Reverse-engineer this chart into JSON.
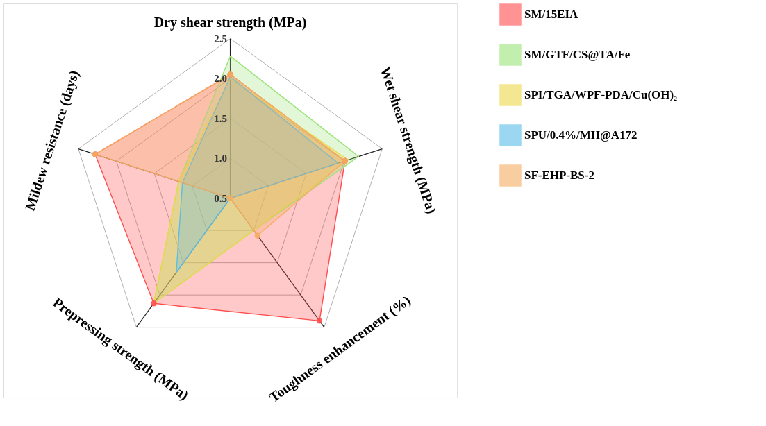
{
  "chart_data": {
    "type": "radar",
    "categories": [
      "Dry shear strength (MPa)",
      "Wet shear strength (MPa)",
      "Toughness enhancement (%)",
      "Prepressing strength (MPa)",
      "Mildew resistance (days)"
    ],
    "series": [
      {
        "name": "SM/15EIA",
        "color": "#ff4d4d",
        "marker": "circle",
        "values": [
          2.05,
          2.01,
          2.4,
          2.13,
          2.28
        ]
      },
      {
        "name": "SM/GTF/CS@TA/Fe",
        "color": "#9be37a",
        "marker": "none",
        "values": [
          2.28,
          2.19,
          1.0,
          2.13,
          1.18
        ]
      },
      {
        "name": "SPI/TGA/WPF-PDA/Cu(OH)₂",
        "color": "#ecd84a",
        "marker": "none",
        "values": [
          2.0,
          2.05,
          1.0,
          2.13,
          1.18
        ]
      },
      {
        "name": "SPU/0.4%/MH@A172",
        "color": "#5bbde8",
        "marker": "none",
        "values": [
          2.02,
          1.92,
          0.5,
          1.65,
          1.13
        ]
      },
      {
        "name": "SF-EHP-BS-2",
        "color": "#f5ad62",
        "marker": "circle",
        "values": [
          2.05,
          2.01,
          1.08,
          0.5,
          2.28
        ]
      }
    ],
    "ylim": [
      0.5,
      2.5
    ],
    "yticks": [
      0.5,
      {
        "value": 1.0,
        "label": "1.0"
      },
      1.5,
      {
        "value": 2.0,
        "label": "2.0"
      },
      2.5
    ],
    "grid": true,
    "legend": "right"
  }
}
